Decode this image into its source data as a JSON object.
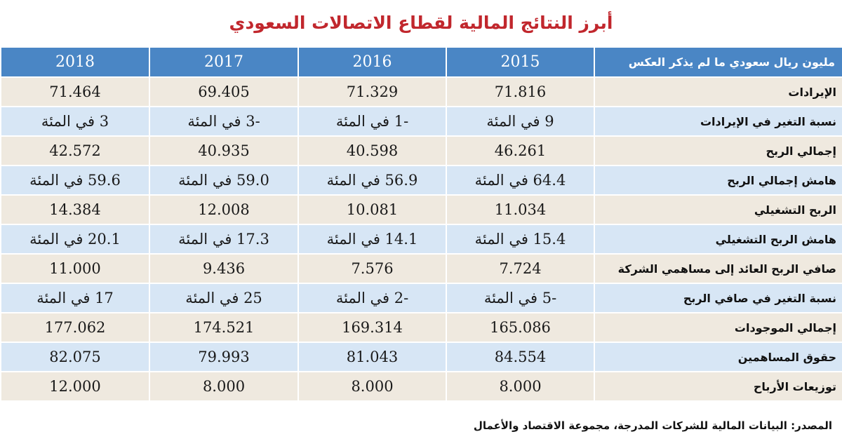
{
  "title": "أبرز النتائج المالية لقطاع الاتصالات السعودي",
  "table": {
    "row_header": "مليون ريال سعودي ما لم يذكر العكس",
    "years": [
      "2015",
      "2016",
      "2017",
      "2018"
    ],
    "rows": [
      {
        "label": "الإيرادات",
        "values": [
          "71.816",
          "71.329",
          "69.405",
          "71.464"
        ]
      },
      {
        "label": "نسبة التغير في الإيرادات",
        "values": [
          "9 في المئة",
          "-1 في المئة",
          "-3 في المئة",
          "3 في المئة"
        ]
      },
      {
        "label": "إجمالي الربح",
        "values": [
          "46.261",
          "40.598",
          "40.935",
          "42.572"
        ]
      },
      {
        "label": "هامش إجمالي الربح",
        "values": [
          "64.4 في المئة",
          "56.9 في المئة",
          "59.0 في المئة",
          "59.6 في المئة"
        ]
      },
      {
        "label": "الربح التشغيلي",
        "values": [
          "11.034",
          "10.081",
          "12.008",
          "14.384"
        ]
      },
      {
        "label": "هامش الربح التشغيلي",
        "values": [
          "15.4 في المئة",
          "14.1 في المئة",
          "17.3 في المئة",
          "20.1 في المئة"
        ]
      },
      {
        "label": "صافي الربح العائد إلى مساهمي الشركة",
        "values": [
          "7.724",
          "7.576",
          "9.436",
          "11.000"
        ]
      },
      {
        "label": "نسبة التغير في صافي الربح",
        "values": [
          "-5 في المئة",
          "-2 في المئة",
          "25 في المئة",
          "17 في المئة"
        ]
      },
      {
        "label": "إجمالي الموجودات",
        "values": [
          "165.086",
          "169.314",
          "174.521",
          "177.062"
        ]
      },
      {
        "label": "حقوق المساهمين",
        "values": [
          "84.554",
          "81.043",
          "79.993",
          "82.075"
        ]
      },
      {
        "label": "توزيعات الأرباح",
        "values": [
          "8.000",
          "8.000",
          "8.000",
          "12.000"
        ]
      }
    ]
  },
  "source": "المصدر: البيانات المالية للشركات المدرجة، مجموعة الاقتصاد والأعمال",
  "colors": {
    "title": "#c1272d",
    "header_bg": "#4a86c5",
    "row_odd": "#efe9df",
    "row_even": "#d7e6f5"
  }
}
